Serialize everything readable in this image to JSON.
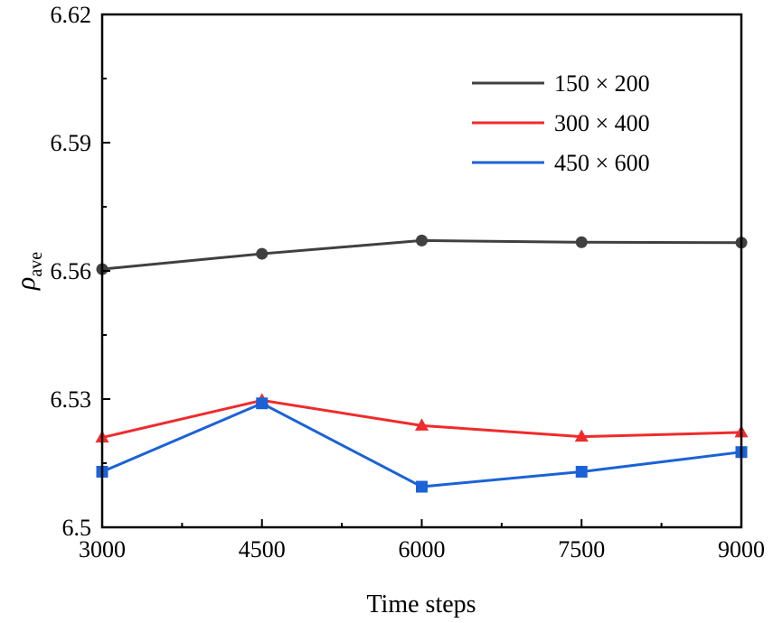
{
  "chart_data": {
    "type": "line",
    "xlabel": "Time steps",
    "ylabel_symbol": "ρ",
    "ylabel_subscript": "ave",
    "x": [
      3000,
      4500,
      6000,
      7500,
      9000
    ],
    "xlim": [
      3000,
      9000
    ],
    "ylim": [
      6.5,
      6.62
    ],
    "x_ticks": [
      "3000",
      "4500",
      "6000",
      "7500",
      "9000"
    ],
    "y_ticks": [
      {
        "value": 6.5,
        "label": "6.5"
      },
      {
        "value": 6.53,
        "label": "6.53"
      },
      {
        "value": 6.56,
        "label": "6.56"
      },
      {
        "value": 6.59,
        "label": "6.59"
      },
      {
        "value": 6.62,
        "label": "6.62"
      }
    ],
    "grid": false,
    "legend_position": "top-right",
    "series": [
      {
        "name": "150 × 200",
        "color": "#404040",
        "marker": "circle",
        "values": [
          6.5604,
          6.564,
          6.5671,
          6.5667,
          6.5666
        ]
      },
      {
        "name": "300 × 400",
        "color": "#ef2b2b",
        "marker": "triangle",
        "values": [
          6.521,
          6.5297,
          6.5238,
          6.5212,
          6.5222
        ]
      },
      {
        "name": "450 × 600",
        "color": "#1b62d6",
        "marker": "square",
        "values": [
          6.513,
          6.529,
          6.5095,
          6.513,
          6.5176
        ]
      }
    ]
  }
}
